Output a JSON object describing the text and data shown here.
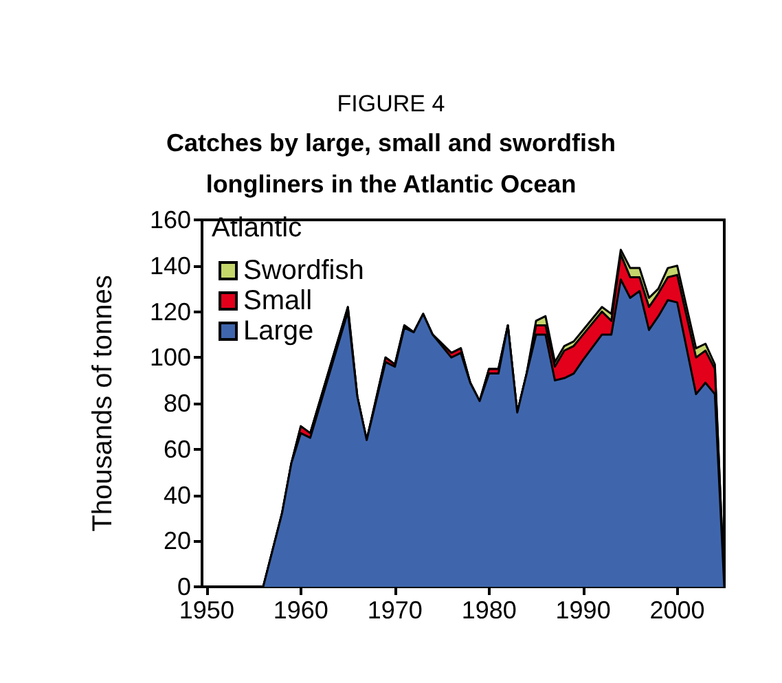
{
  "chart_data": {
    "type": "area",
    "title": "FIGURE 4",
    "subtitle": "Catches by large, small and swordfish\nlongliners in the Atlantic Ocean",
    "ylabel": "Thousands of tonnes",
    "legend_title": "Atlantic",
    "legend": "top left",
    "stacked": true,
    "grid": false,
    "x": [
      1950,
      1956,
      1958,
      1959,
      1960,
      1961,
      1965,
      1966,
      1967,
      1969,
      1970,
      1971,
      1972,
      1973,
      1974,
      1976,
      1977,
      1978,
      1979,
      1980,
      1981,
      1982,
      1983,
      1984,
      1985,
      1986,
      1987,
      1988,
      1989,
      1990,
      1992,
      1993,
      1994,
      1995,
      1996,
      1997,
      1998,
      1999,
      2000,
      2002,
      2003,
      2004,
      2005
    ],
    "series": [
      {
        "name": "Large",
        "color": "#3f66ad",
        "values": [
          0,
          0,
          32,
          54,
          67,
          65,
          120,
          83,
          64,
          98,
          96,
          113,
          111,
          119,
          110,
          100,
          102,
          89,
          81,
          93,
          93,
          114,
          76,
          93,
          110,
          110,
          90,
          91,
          93,
          99,
          110,
          110,
          134,
          126,
          129,
          112,
          118,
          125,
          124,
          84,
          89,
          84,
          0
        ]
      },
      {
        "name": "Small",
        "color": "#e3001b",
        "values": [
          0,
          0,
          0,
          0,
          3,
          2,
          2,
          0,
          0,
          2,
          1,
          1,
          0,
          0,
          0,
          2,
          2,
          0,
          0,
          2,
          2,
          0,
          0,
          0,
          4,
          4,
          6,
          12,
          12,
          11,
          10,
          6,
          11,
          9,
          6,
          10,
          10,
          10,
          12,
          16,
          14,
          11,
          0
        ]
      },
      {
        "name": "Swordfish",
        "color": "#c5d66b",
        "values": [
          0,
          0,
          0,
          0,
          0,
          0,
          0,
          0,
          0,
          0,
          0,
          0,
          0,
          0,
          0,
          0,
          0,
          0,
          0,
          0,
          0,
          0,
          0,
          0,
          2,
          4,
          2,
          2,
          2,
          2,
          2,
          3,
          2,
          4,
          4,
          4,
          2,
          4,
          4,
          4,
          3,
          2,
          0
        ]
      }
    ],
    "xlim": [
      1949.5,
      2005
    ],
    "xticks": [
      1950,
      1960,
      1970,
      1980,
      1990,
      2000
    ],
    "ylim": [
      0,
      160
    ],
    "yticks": [
      0,
      20,
      40,
      60,
      80,
      100,
      120,
      140,
      160
    ]
  }
}
